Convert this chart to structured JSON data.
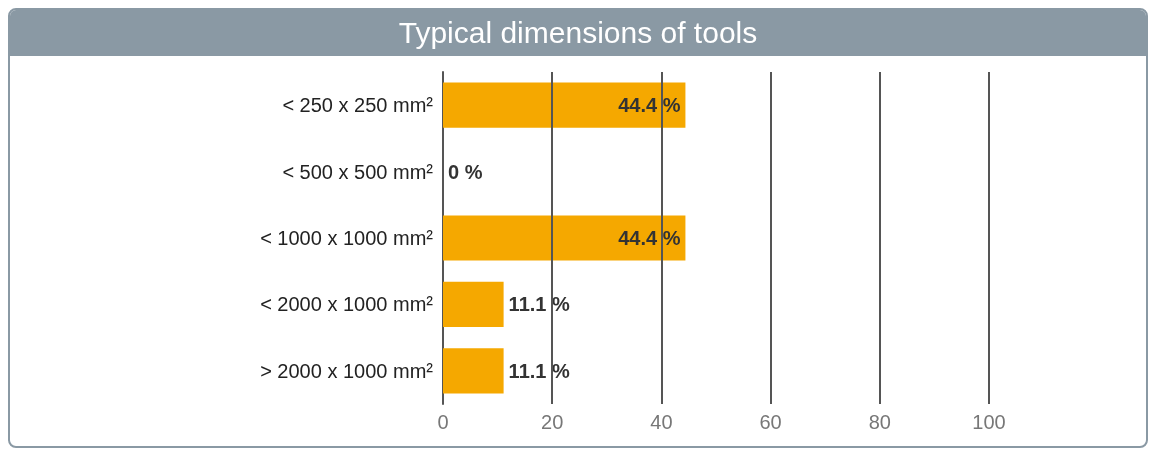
{
  "chart_data": {
    "type": "bar",
    "orientation": "horizontal",
    "title": "Typical dimensions of tools",
    "categories": [
      "< 250 x 250 mm²",
      "< 500 x 500 mm²",
      "< 1000 x 1000 mm²",
      "< 2000 x 1000 mm²",
      "> 2000 x 1000 mm²"
    ],
    "values": [
      44.4,
      0,
      44.4,
      11.1,
      11.1
    ],
    "value_labels": [
      "44.4 %",
      "0 %",
      "44.4 %",
      "11.1 %",
      "11.1 %"
    ],
    "color": "#f5a800",
    "xlim": [
      0,
      100
    ],
    "xticks": [
      0,
      20,
      40,
      60,
      80,
      100
    ],
    "grid": "x"
  }
}
